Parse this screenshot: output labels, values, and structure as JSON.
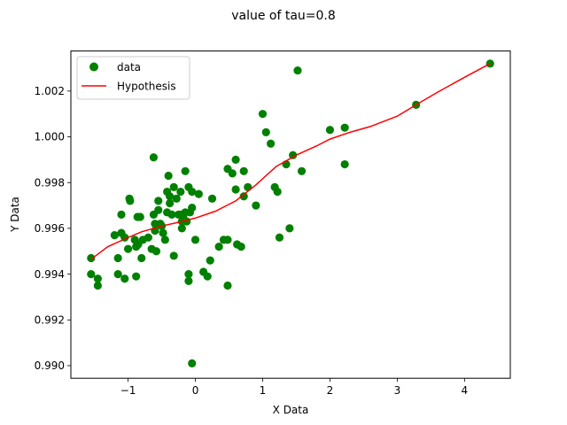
{
  "chart_data": {
    "type": "scatter",
    "title": "value of tau=0.8",
    "xlabel": "X Data",
    "ylabel": "Y Data",
    "xlim": [
      -1.85,
      4.68
    ],
    "ylim": [
      0.98945,
      1.00375
    ],
    "xticks": [
      -1,
      0,
      1,
      2,
      3,
      4
    ],
    "yticks": [
      0.99,
      0.992,
      0.994,
      0.996,
      0.998,
      1.0,
      1.002
    ],
    "xtick_labels": [
      "−1",
      "0",
      "1",
      "2",
      "3",
      "4"
    ],
    "ytick_labels": [
      "0.990",
      "0.992",
      "0.994",
      "0.996",
      "0.998",
      "1.000",
      "1.002"
    ],
    "grid": false,
    "legend_position": "top-left",
    "series": [
      {
        "name": "data",
        "kind": "scatter",
        "color": "#008000",
        "points": [
          [
            -1.55,
            0.9947
          ],
          [
            -1.55,
            0.994
          ],
          [
            -1.45,
            0.9938
          ],
          [
            -1.45,
            0.9935
          ],
          [
            -1.2,
            0.9957
          ],
          [
            -1.15,
            0.9947
          ],
          [
            -1.15,
            0.994
          ],
          [
            -1.1,
            0.9966
          ],
          [
            -1.1,
            0.9958
          ],
          [
            -1.05,
            0.9956
          ],
          [
            -1.05,
            0.9938
          ],
          [
            -1.0,
            0.9951
          ],
          [
            -0.98,
            0.9973
          ],
          [
            -0.97,
            0.9972
          ],
          [
            -0.9,
            0.9955
          ],
          [
            -0.88,
            0.9952
          ],
          [
            -0.88,
            0.9939
          ],
          [
            -0.86,
            0.9965
          ],
          [
            -0.85,
            0.9953
          ],
          [
            -0.82,
            0.9965
          ],
          [
            -0.8,
            0.9947
          ],
          [
            -0.78,
            0.9955
          ],
          [
            -0.7,
            0.9956
          ],
          [
            -0.65,
            0.9951
          ],
          [
            -0.62,
            0.9991
          ],
          [
            -0.62,
            0.9966
          ],
          [
            -0.6,
            0.9962
          ],
          [
            -0.6,
            0.9959
          ],
          [
            -0.58,
            0.995
          ],
          [
            -0.55,
            0.9972
          ],
          [
            -0.55,
            0.9968
          ],
          [
            -0.52,
            0.9962
          ],
          [
            -0.5,
            0.9961
          ],
          [
            -0.48,
            0.9958
          ],
          [
            -0.45,
            0.9955
          ],
          [
            -0.42,
            0.9976
          ],
          [
            -0.42,
            0.9967
          ],
          [
            -0.4,
            0.9983
          ],
          [
            -0.38,
            0.9974
          ],
          [
            -0.38,
            0.9971
          ],
          [
            -0.35,
            0.9966
          ],
          [
            -0.32,
            0.9978
          ],
          [
            -0.32,
            0.9948
          ],
          [
            -0.28,
            0.9973
          ],
          [
            -0.25,
            0.9966
          ],
          [
            -0.22,
            0.9976
          ],
          [
            -0.22,
            0.9966
          ],
          [
            -0.2,
            0.9963
          ],
          [
            -0.2,
            0.996
          ],
          [
            -0.18,
            0.9965
          ],
          [
            -0.15,
            0.9985
          ],
          [
            -0.15,
            0.9967
          ],
          [
            -0.13,
            0.9963
          ],
          [
            -0.1,
            0.9978
          ],
          [
            -0.1,
            0.994
          ],
          [
            -0.1,
            0.9937
          ],
          [
            -0.08,
            0.9967
          ],
          [
            -0.05,
            0.9976
          ],
          [
            -0.05,
            0.9969
          ],
          [
            -0.05,
            0.9901
          ],
          [
            0.0,
            0.9955
          ],
          [
            0.05,
            0.9975
          ],
          [
            0.12,
            0.9941
          ],
          [
            0.18,
            0.9939
          ],
          [
            0.22,
            0.9946
          ],
          [
            0.25,
            0.9973
          ],
          [
            0.35,
            0.9952
          ],
          [
            0.42,
            0.9955
          ],
          [
            0.48,
            0.9955
          ],
          [
            0.48,
            0.9986
          ],
          [
            0.48,
            0.9935
          ],
          [
            0.55,
            0.9984
          ],
          [
            0.6,
            0.999
          ],
          [
            0.6,
            0.9977
          ],
          [
            0.62,
            0.9953
          ],
          [
            0.68,
            0.9952
          ],
          [
            0.72,
            0.9985
          ],
          [
            0.72,
            0.9974
          ],
          [
            0.78,
            0.9978
          ],
          [
            0.9,
            0.997
          ],
          [
            1.0,
            1.001
          ],
          [
            1.05,
            1.0002
          ],
          [
            1.12,
            0.9997
          ],
          [
            1.18,
            0.9978
          ],
          [
            1.22,
            0.9976
          ],
          [
            1.25,
            0.9956
          ],
          [
            1.35,
            0.9988
          ],
          [
            1.4,
            0.996
          ],
          [
            1.45,
            0.9992
          ],
          [
            1.52,
            1.0029
          ],
          [
            1.58,
            0.9985
          ],
          [
            2.0,
            1.0003
          ],
          [
            2.22,
            1.0004
          ],
          [
            2.22,
            0.9988
          ],
          [
            3.28,
            1.0014
          ],
          [
            4.38,
            1.0032
          ]
        ]
      },
      {
        "name": "Hypothesis",
        "kind": "line",
        "color": "#ff0000",
        "points": [
          [
            -1.55,
            0.99465
          ],
          [
            -1.3,
            0.9952
          ],
          [
            -1.0,
            0.9956
          ],
          [
            -0.8,
            0.99585
          ],
          [
            -0.5,
            0.9961
          ],
          [
            -0.2,
            0.9963
          ],
          [
            0.0,
            0.99645
          ],
          [
            0.3,
            0.99675
          ],
          [
            0.6,
            0.9972
          ],
          [
            0.9,
            0.9979
          ],
          [
            1.2,
            0.9987
          ],
          [
            1.5,
            0.9992
          ],
          [
            1.8,
            0.9996
          ],
          [
            2.0,
            0.9999
          ],
          [
            2.3,
            1.0002
          ],
          [
            2.6,
            1.00045
          ],
          [
            3.0,
            1.0009
          ],
          [
            3.28,
            1.0014
          ],
          [
            3.6,
            1.00195
          ],
          [
            4.0,
            1.0026
          ],
          [
            4.38,
            1.0032
          ]
        ]
      }
    ]
  }
}
